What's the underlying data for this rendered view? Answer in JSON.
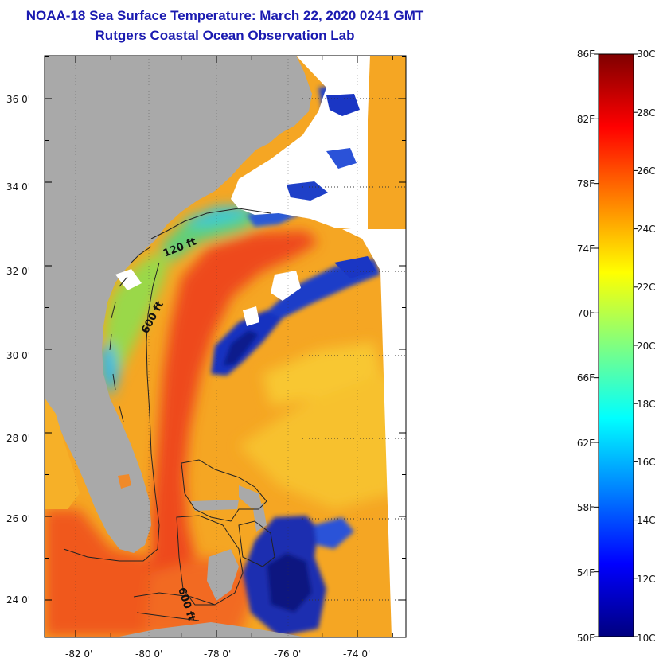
{
  "title": {
    "line1": "NOAA-18 Sea Surface Temperature:  March 22, 2020 0241 GMT",
    "line2": "Rutgers Coastal Ocean Observation Lab"
  },
  "map": {
    "lat_labels": [
      "36 0'",
      "34 0'",
      "32 0'",
      "30 0'",
      "28 0'",
      "26 0'",
      "24 0'"
    ],
    "lon_labels": [
      "-82 0'",
      "-80 0'",
      "-78 0'",
      "-76 0'",
      "-74 0'"
    ],
    "contour_labels": [
      "120 ft",
      "600 ft",
      "600 ft"
    ],
    "land_color": "#a9a9a9",
    "no_data_color": "#ffffff"
  },
  "colorbar": {
    "fahrenheit_labels": [
      "86F",
      "82F",
      "78F",
      "74F",
      "70F",
      "66F",
      "62F",
      "58F",
      "54F",
      "50F"
    ],
    "celsius_labels": [
      "30C",
      "28C",
      "26C",
      "24C",
      "22C",
      "20C",
      "18C",
      "16C",
      "14C",
      "12C",
      "10C"
    ],
    "colormap": [
      "#00007f",
      "#0000ff",
      "#0080ff",
      "#00ffff",
      "#80ff80",
      "#ffff00",
      "#ff8000",
      "#ff0000",
      "#7f0000"
    ]
  }
}
